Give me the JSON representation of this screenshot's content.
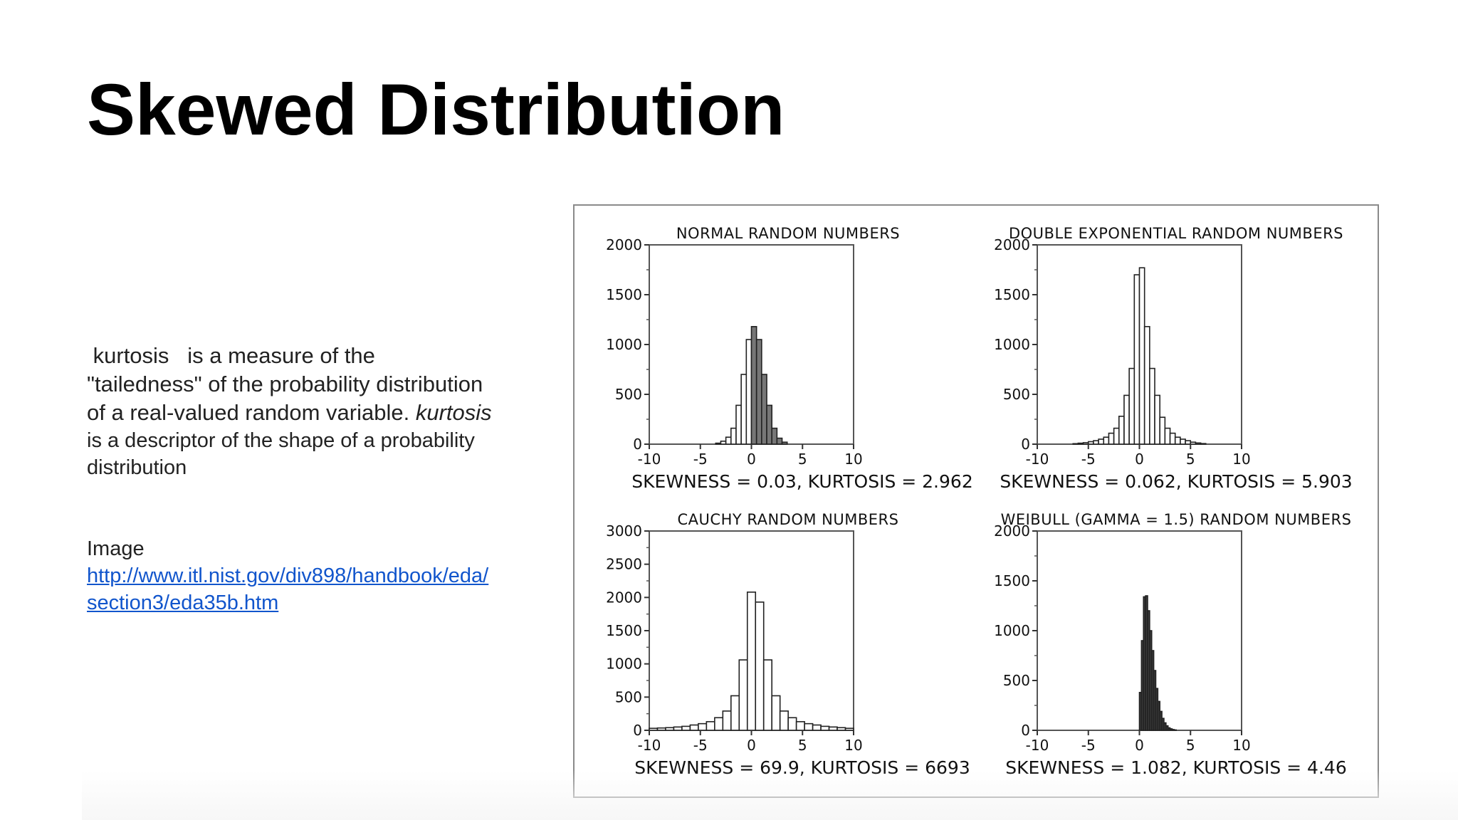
{
  "slide": {
    "title": "Skewed Distribution"
  },
  "description": {
    "term": "kurtosis",
    "line1_rest": "is a measure of the",
    "line2": "\"tailedness\" of the probability distribution",
    "line3_start": "of a real-valued random variable.",
    "line3_italic": "kurtosis",
    "line4": "is a descriptor of the shape of a probability",
    "line5": "distribution"
  },
  "source": {
    "label": "Image",
    "link_line1": "http://www.itl.nist.gov/div898/handbook/eda/",
    "link_line2": "section3/eda35b.htm"
  },
  "chart_data": [
    {
      "type": "bar",
      "title": "NORMAL RANDOM NUMBERS",
      "caption": "SKEWNESS = 0.03, KURTOSIS = 2.962",
      "xlim": [
        -10,
        10
      ],
      "ylim": [
        0,
        2000
      ],
      "xticks": [
        -10,
        -5,
        0,
        5,
        10
      ],
      "yticks": [
        0,
        500,
        1000,
        1500,
        2000
      ],
      "bin_width": 0.5,
      "x": [
        -3.25,
        -2.75,
        -2.25,
        -1.75,
        -1.25,
        -0.75,
        -0.25,
        0.25,
        0.75,
        1.25,
        1.75,
        2.25,
        2.75,
        3.25
      ],
      "values": [
        10,
        30,
        70,
        160,
        390,
        700,
        1050,
        1180,
        1050,
        700,
        390,
        160,
        60,
        20
      ],
      "shaded": "right"
    },
    {
      "type": "bar",
      "title": "DOUBLE EXPONENTIAL RANDOM NUMBERS",
      "caption": "SKEWNESS = 0.062, KURTOSIS = 5.903",
      "xlim": [
        -10,
        10
      ],
      "ylim": [
        0,
        2000
      ],
      "xticks": [
        -10,
        -5,
        0,
        5,
        10
      ],
      "yticks": [
        0,
        500,
        1000,
        1500,
        2000
      ],
      "bin_width": 0.5,
      "x": [
        -6.25,
        -5.75,
        -5.25,
        -4.75,
        -4.25,
        -3.75,
        -3.25,
        -2.75,
        -2.25,
        -1.75,
        -1.25,
        -0.75,
        -0.25,
        0.25,
        0.75,
        1.25,
        1.75,
        2.25,
        2.75,
        3.25,
        3.75,
        4.25,
        4.75,
        5.25,
        5.75,
        6.25
      ],
      "values": [
        5,
        10,
        15,
        25,
        35,
        50,
        70,
        110,
        160,
        280,
        490,
        760,
        1700,
        1770,
        1180,
        760,
        490,
        270,
        160,
        110,
        70,
        50,
        35,
        20,
        12,
        6
      ],
      "shaded": "none"
    },
    {
      "type": "bar",
      "title": "CAUCHY RANDOM NUMBERS",
      "caption": "SKEWNESS = 69.9, KURTOSIS = 6693",
      "xlim": [
        -10,
        10
      ],
      "ylim": [
        0,
        3000
      ],
      "xticks": [
        -10,
        -5,
        0,
        5,
        10
      ],
      "yticks": [
        0,
        500,
        1000,
        1500,
        2000,
        2500,
        3000
      ],
      "bin_width": 0.8,
      "x": [
        -9.6,
        -8.8,
        -8.0,
        -7.2,
        -6.4,
        -5.6,
        -4.8,
        -4.0,
        -3.2,
        -2.4,
        -1.6,
        -0.8,
        0.0,
        0.8,
        1.6,
        2.4,
        3.2,
        4.0,
        4.8,
        5.6,
        6.4,
        7.2,
        8.0,
        8.8,
        9.6
      ],
      "values": [
        30,
        35,
        40,
        50,
        60,
        80,
        100,
        130,
        190,
        290,
        520,
        1060,
        2080,
        1930,
        1060,
        520,
        290,
        190,
        130,
        100,
        80,
        60,
        50,
        40,
        30
      ],
      "shaded": "none"
    },
    {
      "type": "bar",
      "title": "WEIBULL (GAMMA = 1.5) RANDOM NUMBERS",
      "caption": "SKEWNESS = 1.082, KURTOSIS = 4.46",
      "xlim": [
        -10,
        10
      ],
      "ylim": [
        0,
        2000
      ],
      "xticks": [
        -10,
        -5,
        0,
        5,
        10
      ],
      "yticks": [
        0,
        500,
        1000,
        1500,
        2000
      ],
      "bin_width": 0.2,
      "x": [
        0.1,
        0.3,
        0.5,
        0.7,
        0.9,
        1.1,
        1.3,
        1.5,
        1.7,
        1.9,
        2.1,
        2.3,
        2.5,
        2.7,
        2.9,
        3.1,
        3.3,
        3.5
      ],
      "values": [
        380,
        900,
        1340,
        1350,
        1200,
        1000,
        800,
        600,
        420,
        290,
        190,
        120,
        75,
        45,
        25,
        15,
        8,
        4
      ],
      "shaded": "all"
    }
  ]
}
